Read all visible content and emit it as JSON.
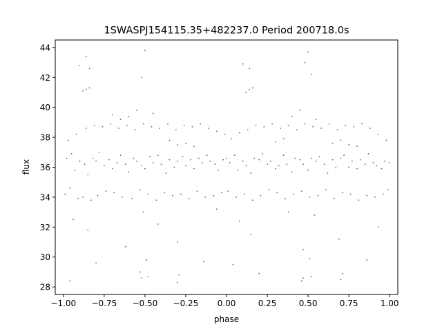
{
  "chart_data": {
    "type": "scatter",
    "title": "1SWASPJ154115.35+482237.0 Period 200718.0s",
    "xlabel": "phase",
    "ylabel": "flux",
    "xlim": [
      -1.05,
      1.05
    ],
    "ylim": [
      27.5,
      44.5
    ],
    "x_ticks": [
      -1.0,
      -0.75,
      -0.5,
      -0.25,
      0.0,
      0.25,
      0.5,
      0.75,
      1.0
    ],
    "x_tick_labels": [
      "−1.00",
      "−0.75",
      "−0.50",
      "−0.25",
      "0.00",
      "0.25",
      "0.50",
      "0.75",
      "1.00"
    ],
    "y_ticks": [
      28,
      30,
      32,
      34,
      36,
      38,
      40,
      42,
      44
    ],
    "y_tick_labels": [
      "28",
      "30",
      "32",
      "34",
      "36",
      "38",
      "40",
      "42",
      "44"
    ],
    "grid": false,
    "marker_color": "#1f77b4",
    "series": [
      {
        "x": [
          -0.98,
          -0.95,
          -0.93,
          -0.9,
          -0.87,
          -0.85,
          -0.82,
          -0.8,
          -0.78,
          -0.75,
          -0.72,
          -0.7,
          -0.67,
          -0.65,
          -0.62,
          -0.6,
          -0.57,
          -0.55,
          -0.52,
          -0.5,
          -0.47,
          -0.45,
          -0.42,
          -0.4,
          -0.37,
          -0.35,
          -0.32,
          -0.3,
          -0.27,
          -0.25,
          -0.22,
          -0.2,
          -0.17,
          -0.15,
          -0.12,
          -0.1,
          -0.07,
          -0.05,
          -0.02,
          0.0,
          0.02,
          0.05,
          0.07,
          0.1,
          0.12,
          0.15,
          0.17,
          0.2,
          0.22,
          0.25,
          0.27,
          0.3,
          0.32,
          0.35,
          0.37,
          0.4,
          0.42,
          0.45,
          0.47,
          0.5,
          0.52,
          0.55,
          0.57,
          0.6,
          0.62,
          0.65,
          0.67,
          0.7,
          0.72,
          0.75,
          0.77,
          0.8,
          0.82,
          0.85,
          0.87,
          0.9,
          0.92,
          0.95,
          0.97,
          1.0,
          -0.99,
          -0.96,
          -0.91,
          -0.88,
          -0.83,
          -0.79,
          -0.74,
          -0.69,
          -0.64,
          -0.58,
          -0.53,
          -0.48,
          -0.43,
          -0.38,
          -0.33,
          -0.28,
          -0.23,
          -0.18,
          -0.13,
          -0.08,
          -0.03,
          0.01,
          0.06,
          0.11,
          0.16,
          0.21,
          0.26,
          0.31,
          0.36,
          0.41,
          0.46,
          0.51,
          0.56,
          0.61,
          0.66,
          0.71,
          0.76,
          0.81,
          0.86,
          0.91,
          0.96,
          0.99,
          -0.97,
          -0.92,
          -0.86,
          -0.81,
          -0.76,
          -0.71,
          -0.66,
          -0.61,
          -0.56,
          -0.51,
          -0.46,
          -0.41,
          -0.36,
          -0.31,
          -0.26,
          -0.21,
          -0.16,
          -0.11,
          -0.06,
          -0.01,
          0.03,
          0.08,
          0.13,
          0.18,
          0.23,
          0.28,
          0.33,
          0.38,
          0.43,
          0.48,
          0.53,
          0.58,
          0.63,
          0.68,
          0.73,
          0.78,
          0.83,
          0.88,
          0.93,
          0.98,
          -0.88,
          -0.86,
          -0.84,
          -0.7,
          -0.65,
          -0.6,
          -0.55,
          -0.45,
          -0.35,
          -0.3,
          -0.25,
          -0.2,
          0.12,
          0.14,
          0.16,
          0.3,
          0.35,
          0.4,
          0.45,
          0.55,
          0.65,
          0.7,
          0.75,
          0.8,
          -0.9,
          -0.86,
          -0.84,
          -0.52,
          -0.5,
          0.1,
          0.14,
          0.48,
          0.5,
          0.52,
          -0.94,
          -0.85,
          -0.62,
          -0.51,
          -0.49,
          -0.42,
          -0.3,
          -0.06,
          0.08,
          0.15,
          0.38,
          0.47,
          0.51,
          0.54,
          0.69,
          0.93,
          -0.96,
          -0.8,
          -0.53,
          -0.52,
          -0.48,
          -0.3,
          -0.29,
          -0.14,
          0.04,
          0.2,
          0.46,
          0.47,
          0.52,
          0.7,
          0.71,
          0.86
        ],
        "y": [
          36.6,
          36.9,
          35.8,
          36.4,
          36.2,
          35.5,
          36.6,
          36.4,
          37.0,
          36.1,
          36.5,
          35.9,
          36.3,
          36.8,
          36.2,
          35.7,
          36.6,
          36.4,
          36.1,
          35.9,
          36.7,
          36.3,
          36.8,
          36.2,
          35.6,
          36.5,
          36.0,
          36.4,
          36.7,
          36.1,
          36.5,
          35.9,
          36.6,
          36.3,
          36.8,
          36.4,
          36.2,
          35.8,
          36.5,
          36.6,
          36.3,
          36.8,
          35.8,
          36.4,
          36.1,
          35.6,
          36.6,
          36.5,
          36.9,
          36.2,
          36.4,
          35.9,
          36.1,
          36.8,
          36.2,
          35.7,
          36.6,
          36.5,
          36.2,
          35.8,
          36.6,
          36.4,
          36.7,
          36.2,
          35.6,
          36.5,
          36.0,
          36.6,
          36.8,
          36.0,
          36.4,
          35.9,
          36.5,
          36.2,
          36.9,
          36.3,
          36.1,
          35.9,
          36.4,
          36.3,
          34.2,
          34.6,
          33.9,
          34.0,
          33.8,
          34.1,
          34.4,
          34.3,
          34.0,
          33.9,
          34.5,
          34.2,
          33.8,
          34.3,
          34.1,
          34.2,
          33.9,
          34.4,
          34.0,
          34.1,
          34.3,
          34.4,
          34.0,
          34.2,
          33.8,
          34.1,
          34.5,
          34.3,
          33.9,
          34.2,
          34.4,
          34.0,
          34.1,
          34.5,
          33.9,
          34.3,
          34.2,
          33.8,
          34.1,
          34.0,
          34.2,
          34.5,
          37.8,
          38.2,
          38.6,
          38.8,
          38.7,
          38.9,
          38.6,
          38.8,
          38.5,
          38.9,
          38.7,
          38.6,
          38.9,
          38.5,
          38.8,
          38.7,
          38.9,
          38.6,
          38.4,
          38.2,
          37.9,
          38.3,
          38.5,
          38.8,
          38.7,
          38.9,
          38.6,
          38.8,
          38.5,
          38.9,
          38.7,
          38.6,
          38.9,
          38.5,
          38.8,
          38.7,
          38.9,
          38.6,
          38.2,
          37.8,
          41.1,
          41.2,
          41.3,
          39.5,
          39.2,
          39.4,
          39.8,
          39.6,
          37.8,
          37.5,
          37.6,
          37.4,
          41.0,
          41.2,
          41.3,
          37.7,
          37.9,
          39.4,
          39.8,
          39.2,
          37.6,
          37.8,
          37.5,
          37.4,
          42.8,
          43.4,
          42.6,
          42.0,
          43.8,
          42.9,
          42.6,
          43.0,
          43.7,
          42.2,
          32.5,
          31.8,
          30.7,
          33.0,
          29.8,
          32.2,
          31.0,
          33.2,
          32.4,
          31.5,
          33.0,
          30.5,
          29.9,
          32.8,
          31.2,
          32.0,
          28.4,
          29.6,
          29.0,
          28.6,
          28.7,
          28.3,
          28.8,
          29.7,
          29.5,
          28.9,
          28.4,
          28.6,
          28.7,
          28.5,
          28.9,
          29.8
        ]
      }
    ]
  }
}
